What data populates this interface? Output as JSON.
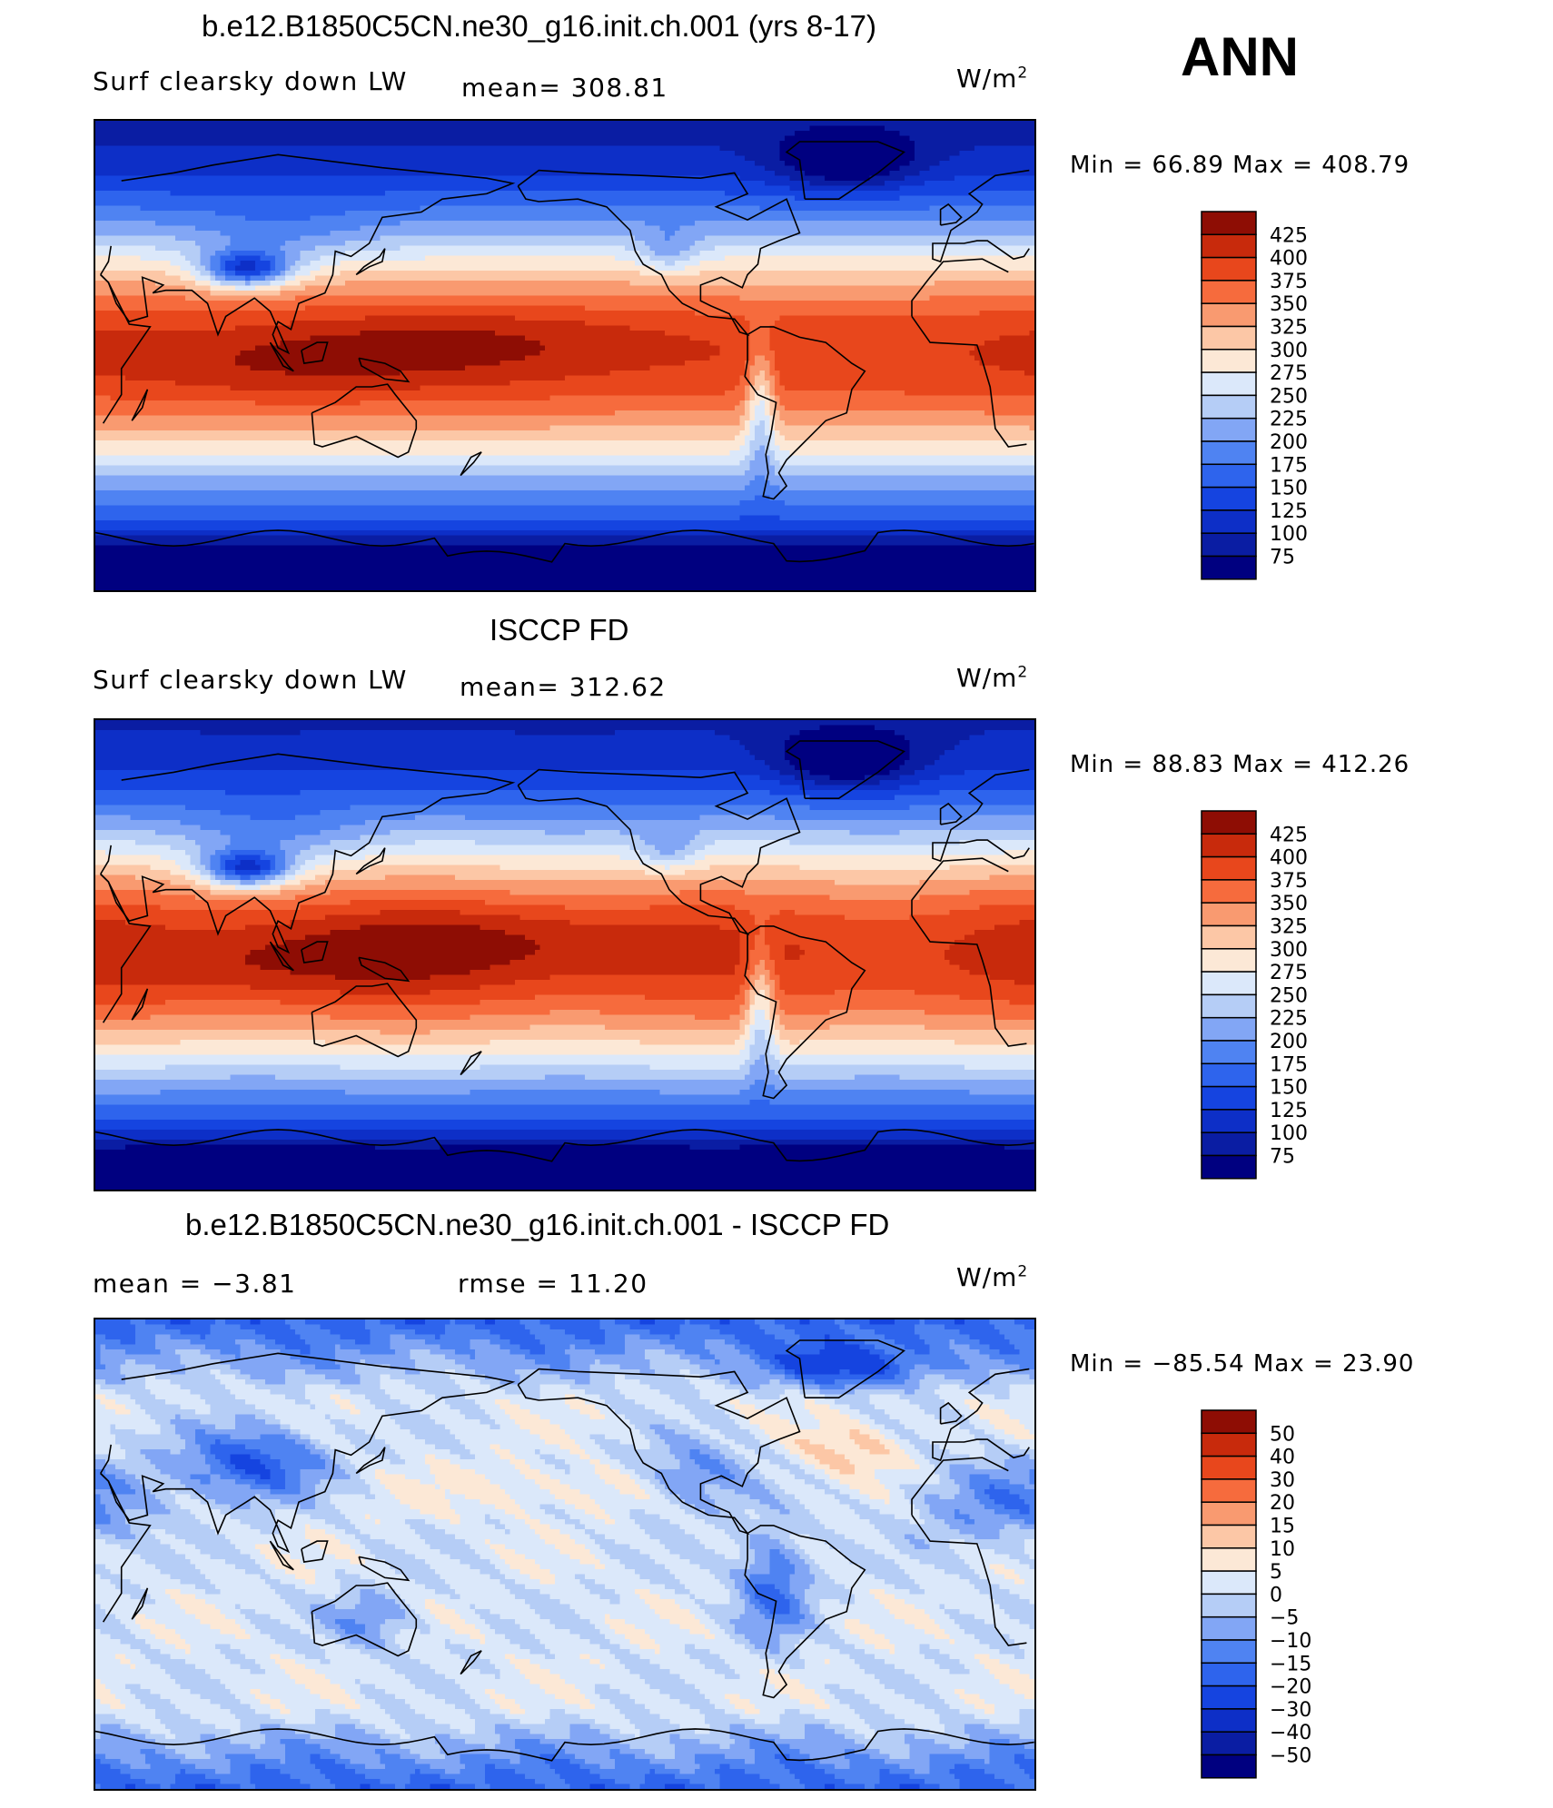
{
  "season": "ANN",
  "panels": [
    {
      "id": "model",
      "title": "b.e12.B1850C5CN.ne30_g16.init.ch.001 (yrs 8-17)",
      "left_label": "Surf clearsky down LW",
      "center_label": "mean=  308.81",
      "units_base": "W/m",
      "units_exp": "2",
      "minmax": "Min =   66.89  Max  =  408.79",
      "field": "model",
      "palette": "abs",
      "levels": [
        "425",
        "400",
        "375",
        "350",
        "325",
        "300",
        "275",
        "250",
        "225",
        "200",
        "175",
        "150",
        "125",
        "100",
        "75"
      ]
    },
    {
      "id": "obs",
      "title": "ISCCP FD",
      "left_label": "Surf clearsky down LW",
      "center_label": "mean=  312.62",
      "units_base": "W/m",
      "units_exp": "2",
      "minmax": "Min =   88.83  Max  =  412.26",
      "field": "obs",
      "palette": "abs",
      "levels": [
        "425",
        "400",
        "375",
        "350",
        "325",
        "300",
        "275",
        "250",
        "225",
        "200",
        "175",
        "150",
        "125",
        "100",
        "75"
      ]
    },
    {
      "id": "diff",
      "title": "b.e12.B1850C5CN.ne30_g16.init.ch.001 - ISCCP FD",
      "left_label": "mean  =    −3.81",
      "center_label": "rmse  =    11.20",
      "units_base": "W/m",
      "units_exp": "2",
      "minmax": "Min  =  −85.54  Max  =    23.90",
      "field": "diff",
      "palette": "diff",
      "levels": [
        "50",
        "40",
        "30",
        "20",
        "15",
        "10",
        "5",
        "0",
        "−5",
        "−10",
        "−15",
        "−20",
        "−30",
        "−40",
        "−50"
      ]
    }
  ],
  "colors": {
    "abs": [
      "#000080",
      "#0a1da3",
      "#0d2fc7",
      "#1544e0",
      "#2e64ed",
      "#4f83f2",
      "#82a6f5",
      "#b5cdf6",
      "#dbe8fa",
      "#fce8d6",
      "#fcc7a6",
      "#f99a70",
      "#f66b3d",
      "#e8471c",
      "#c82a0c",
      "#8e0d04"
    ],
    "diff": [
      "#000080",
      "#0a1da3",
      "#0d2fc7",
      "#1544e0",
      "#2e64ed",
      "#4f83f2",
      "#82a6f5",
      "#b5cdf6",
      "#dbe8fa",
      "#fce8d6",
      "#fcc7a6",
      "#f99a70",
      "#f66b3d",
      "#e8471c",
      "#c82a0c",
      "#8e0d04"
    ]
  }
}
